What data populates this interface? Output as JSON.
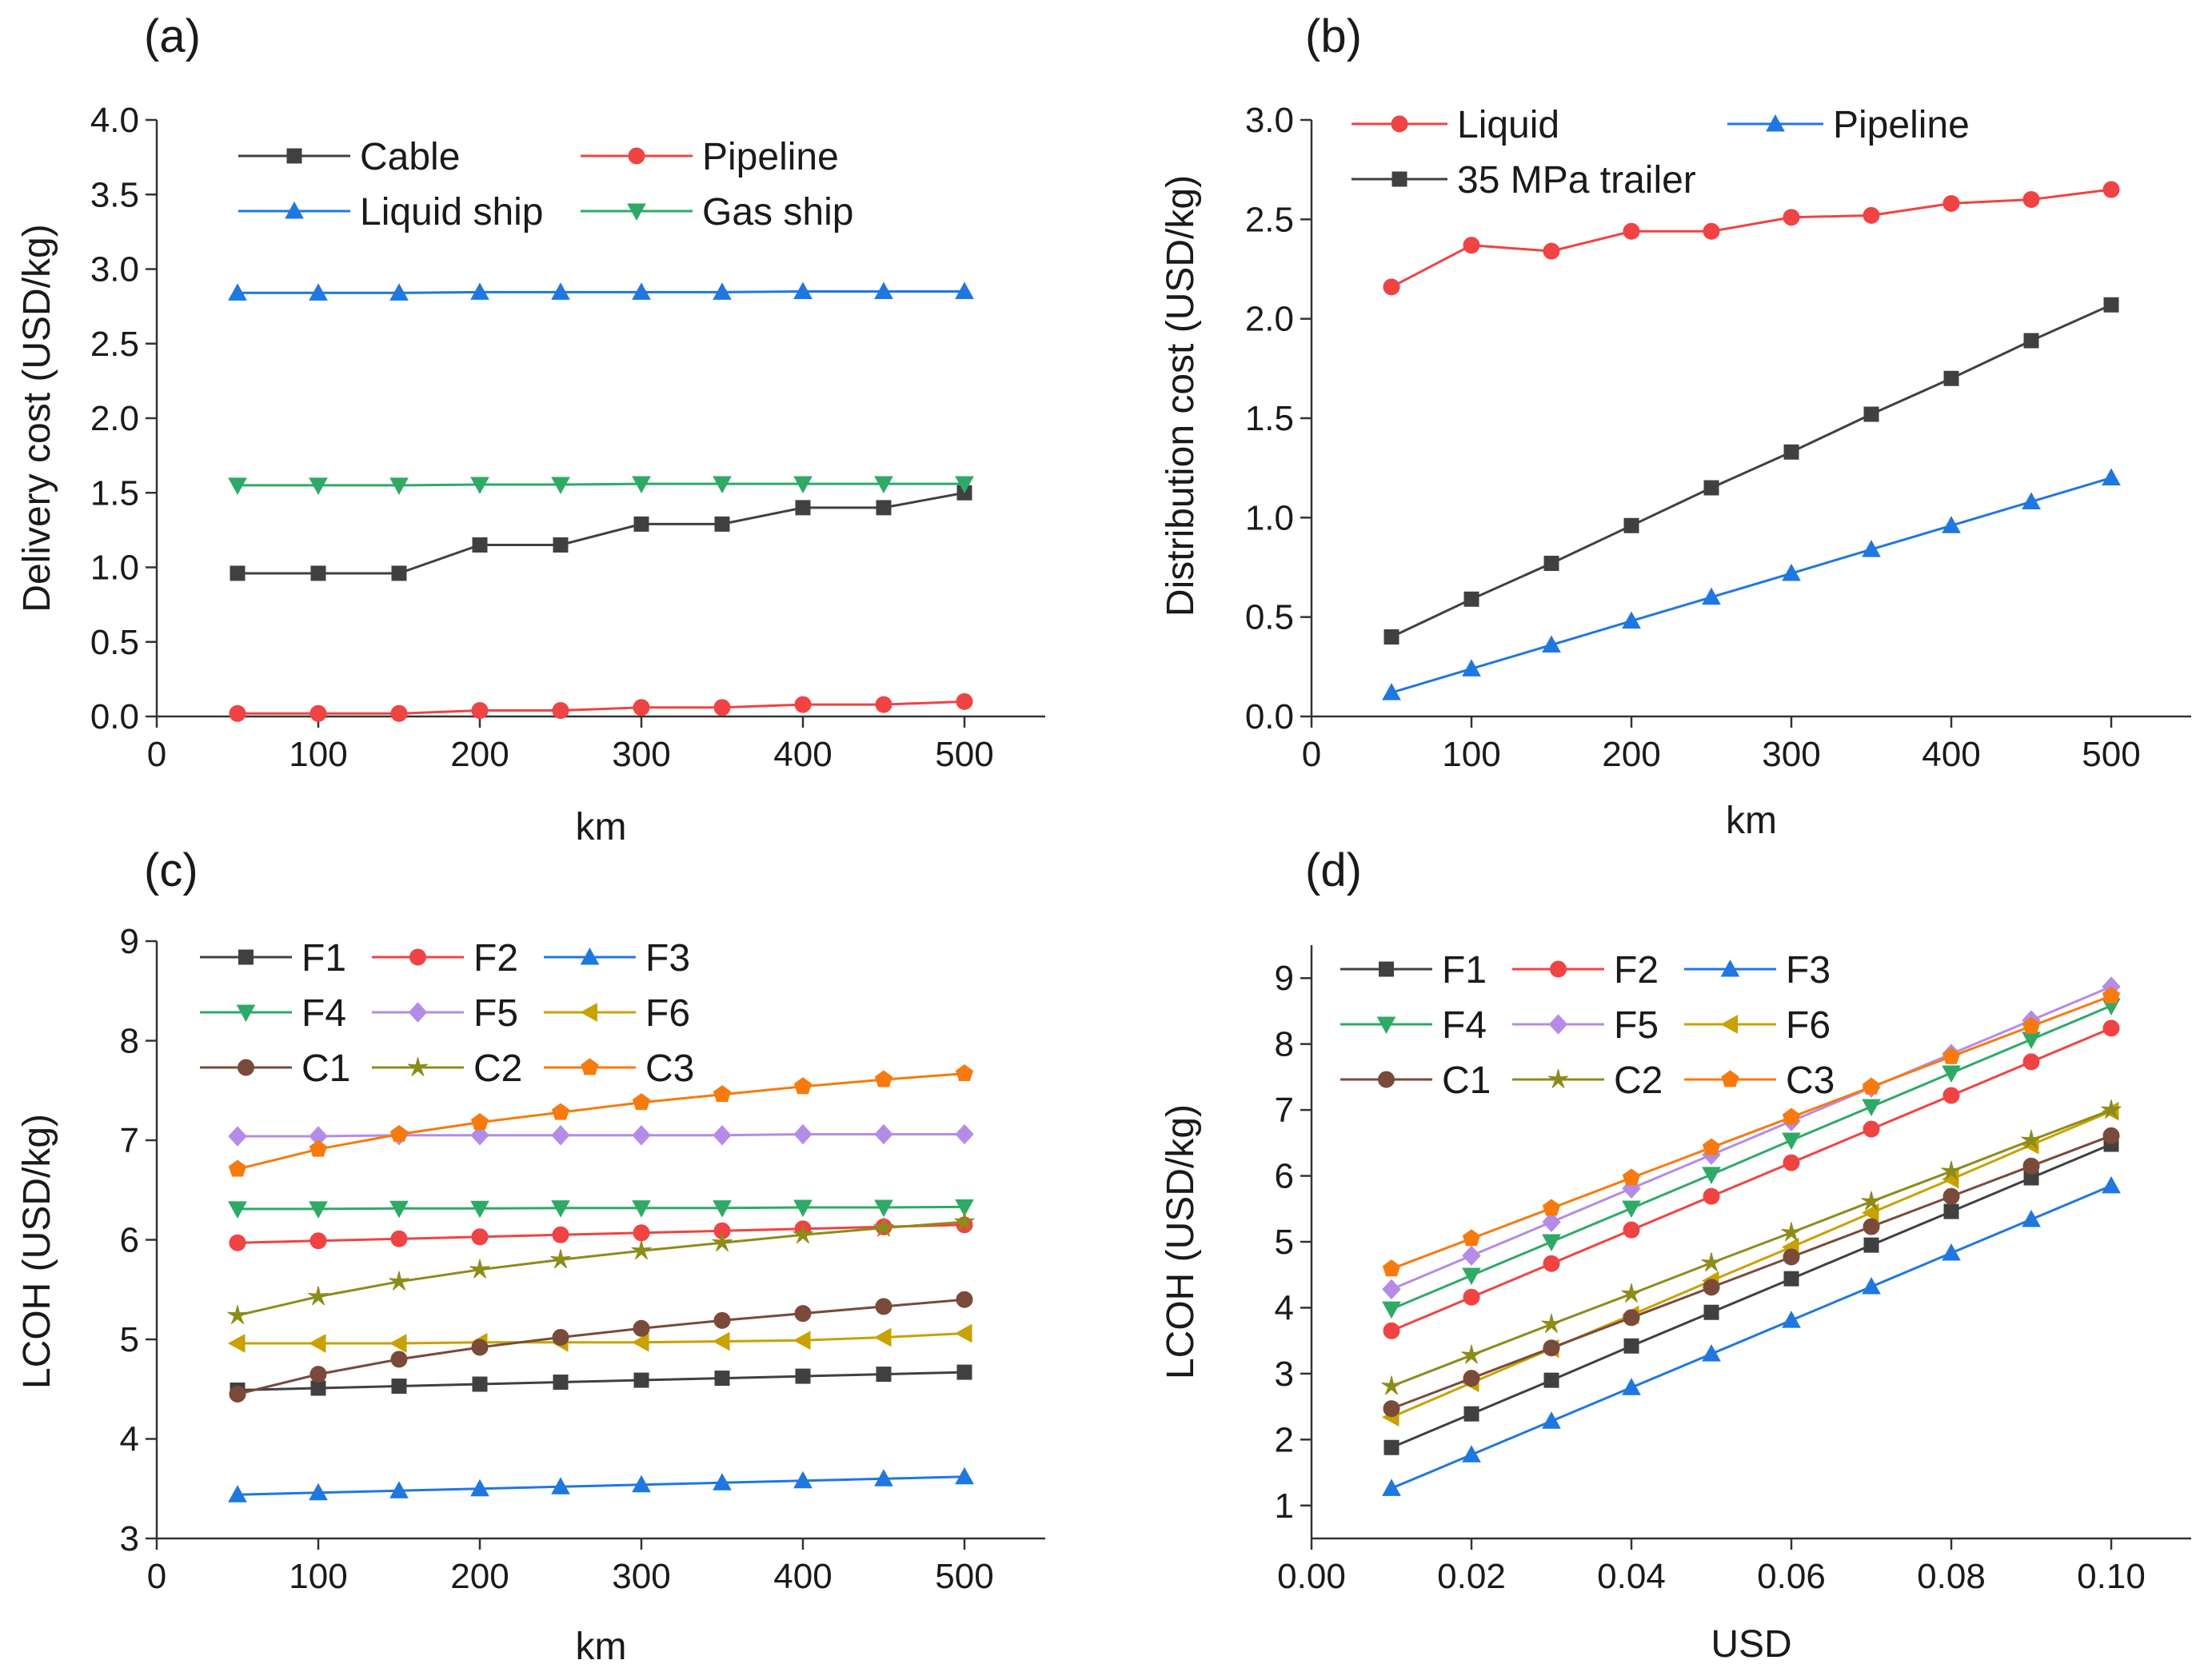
{
  "chart_data": [
    {
      "id": "a",
      "type": "line",
      "panel_label": "(a)",
      "xlabel": "km",
      "ylabel": "Delivery  cost (USD/kg)",
      "xlim": [
        0,
        550
      ],
      "ylim": [
        0,
        4.0
      ],
      "xticks": [
        0,
        100,
        200,
        300,
        400,
        500
      ],
      "xtick_labels": [
        "0",
        "100",
        "200",
        "300",
        "400",
        "500"
      ],
      "yticks": [
        0,
        0.5,
        1.0,
        1.5,
        2.0,
        2.5,
        3.0,
        3.5,
        4.0
      ],
      "ytick_labels": [
        "0.0",
        "0.5",
        "1.0",
        "1.5",
        "2.0",
        "2.5",
        "3.0",
        "3.5",
        "4.0"
      ],
      "legend_columns": 2,
      "x": [
        50,
        100,
        150,
        200,
        250,
        300,
        350,
        400,
        450,
        500
      ],
      "series": [
        {
          "name": "Cable",
          "color": "#404040",
          "marker": "square",
          "values": [
            0.96,
            0.96,
            0.96,
            1.15,
            1.15,
            1.29,
            1.29,
            1.4,
            1.4,
            1.5
          ]
        },
        {
          "name": "Pipeline",
          "color": "#f04343",
          "marker": "circle",
          "values": [
            0.02,
            0.02,
            0.02,
            0.04,
            0.04,
            0.06,
            0.06,
            0.08,
            0.08,
            0.1
          ]
        },
        {
          "name": "Liquid ship",
          "color": "#1f77e0",
          "marker": "triangle-up",
          "values": [
            2.84,
            2.84,
            2.84,
            2.845,
            2.845,
            2.845,
            2.845,
            2.85,
            2.85,
            2.85
          ]
        },
        {
          "name": "Gas ship",
          "color": "#2eaa66",
          "marker": "triangle-down",
          "values": [
            1.55,
            1.55,
            1.55,
            1.555,
            1.555,
            1.56,
            1.56,
            1.56,
            1.56,
            1.56
          ]
        }
      ]
    },
    {
      "id": "b",
      "type": "line",
      "panel_label": "(b)",
      "xlabel": "km",
      "ylabel": "Distribution cost (USD/kg)",
      "xlim": [
        0,
        550
      ],
      "ylim": [
        0,
        3.0
      ],
      "xticks": [
        0,
        100,
        200,
        300,
        400,
        500
      ],
      "xtick_labels": [
        "0",
        "100",
        "200",
        "300",
        "400",
        "500"
      ],
      "yticks": [
        0,
        0.5,
        1.0,
        1.5,
        2.0,
        2.5,
        3.0
      ],
      "ytick_labels": [
        "0.0",
        "0.5",
        "1.0",
        "1.5",
        "2.0",
        "2.5",
        "3.0"
      ],
      "legend_columns": 2,
      "x": [
        50,
        100,
        150,
        200,
        250,
        300,
        350,
        400,
        450,
        500
      ],
      "series": [
        {
          "name": "Liquid",
          "color": "#f04343",
          "marker": "circle",
          "values": [
            2.16,
            2.37,
            2.34,
            2.44,
            2.44,
            2.51,
            2.52,
            2.58,
            2.6,
            2.65
          ]
        },
        {
          "name": "Pipeline",
          "color": "#1f77e0",
          "marker": "triangle-up",
          "values": [
            0.12,
            0.24,
            0.36,
            0.48,
            0.6,
            0.72,
            0.84,
            0.96,
            1.08,
            1.2
          ]
        },
        {
          "name": "35 MPa trailer",
          "color": "#404040",
          "marker": "square",
          "values": [
            0.4,
            0.59,
            0.77,
            0.96,
            1.15,
            1.33,
            1.52,
            1.7,
            1.89,
            2.07
          ]
        }
      ]
    },
    {
      "id": "c",
      "type": "line",
      "panel_label": "(c)",
      "xlabel": "km",
      "ylabel": "LCOH (USD/kg)",
      "xlim": [
        0,
        550
      ],
      "ylim": [
        3,
        9
      ],
      "xticks": [
        0,
        100,
        200,
        300,
        400,
        500
      ],
      "xtick_labels": [
        "0",
        "100",
        "200",
        "300",
        "400",
        "500"
      ],
      "yticks": [
        3,
        4,
        5,
        6,
        7,
        8,
        9
      ],
      "ytick_labels": [
        "3",
        "4",
        "5",
        "6",
        "7",
        "8",
        "9"
      ],
      "legend_columns": 3,
      "x": [
        50,
        100,
        150,
        200,
        250,
        300,
        350,
        400,
        450,
        500
      ],
      "series": [
        {
          "name": "F1",
          "color": "#404040",
          "marker": "square",
          "values": [
            4.49,
            4.51,
            4.53,
            4.55,
            4.57,
            4.59,
            4.61,
            4.63,
            4.65,
            4.67
          ]
        },
        {
          "name": "F2",
          "color": "#f04343",
          "marker": "circle",
          "values": [
            5.97,
            5.99,
            6.01,
            6.03,
            6.05,
            6.07,
            6.09,
            6.11,
            6.13,
            6.15
          ]
        },
        {
          "name": "F3",
          "color": "#1f77e0",
          "marker": "triangle-up",
          "values": [
            3.44,
            3.46,
            3.48,
            3.5,
            3.52,
            3.54,
            3.56,
            3.58,
            3.6,
            3.62
          ]
        },
        {
          "name": "F4",
          "color": "#2eaa66",
          "marker": "triangle-down",
          "values": [
            6.31,
            6.31,
            6.315,
            6.315,
            6.32,
            6.32,
            6.32,
            6.325,
            6.325,
            6.33
          ]
        },
        {
          "name": "F5",
          "color": "#b58be8",
          "marker": "diamond",
          "values": [
            7.04,
            7.04,
            7.05,
            7.05,
            7.05,
            7.05,
            7.05,
            7.06,
            7.06,
            7.06
          ]
        },
        {
          "name": "F6",
          "color": "#c9a100",
          "marker": "triangle-left",
          "values": [
            4.96,
            4.96,
            4.96,
            4.97,
            4.97,
            4.97,
            4.98,
            4.99,
            5.02,
            5.06
          ]
        },
        {
          "name": "C1",
          "color": "#7a4a3a",
          "marker": "circle",
          "values": [
            4.45,
            4.65,
            4.8,
            4.92,
            5.02,
            5.11,
            5.19,
            5.26,
            5.33,
            5.4
          ]
        },
        {
          "name": "C2",
          "color": "#8c8c1a",
          "marker": "star",
          "values": [
            5.24,
            5.43,
            5.58,
            5.7,
            5.8,
            5.89,
            5.97,
            6.05,
            6.12,
            6.18
          ]
        },
        {
          "name": "C3",
          "color": "#f77a0e",
          "marker": "pentagon",
          "values": [
            6.71,
            6.91,
            7.06,
            7.18,
            7.28,
            7.38,
            7.46,
            7.54,
            7.61,
            7.67
          ]
        }
      ]
    },
    {
      "id": "d",
      "type": "line",
      "panel_label": "(d)",
      "xlabel": "USD",
      "ylabel": "LCOH (USD/kg)",
      "xlim": [
        0,
        0.11
      ],
      "ylim": [
        0.5,
        9.5
      ],
      "xticks": [
        0,
        0.02,
        0.04,
        0.06,
        0.08,
        0.1
      ],
      "xtick_labels": [
        "0.00",
        "0.02",
        "0.04",
        "0.06",
        "0.08",
        "0.10"
      ],
      "yticks": [
        1,
        2,
        3,
        4,
        5,
        6,
        7,
        8,
        9
      ],
      "ytick_labels": [
        "1",
        "2",
        "3",
        "4",
        "5",
        "6",
        "7",
        "8",
        "9"
      ],
      "legend_columns": 3,
      "x": [
        0.01,
        0.02,
        0.03,
        0.04,
        0.05,
        0.06,
        0.07,
        0.08,
        0.09,
        0.1
      ],
      "series": [
        {
          "name": "F1",
          "color": "#404040",
          "marker": "square",
          "values": [
            1.88,
            2.39,
            2.9,
            3.42,
            3.93,
            4.44,
            4.95,
            5.46,
            5.97,
            6.48
          ]
        },
        {
          "name": "F2",
          "color": "#f04343",
          "marker": "circle",
          "values": [
            3.65,
            4.16,
            4.67,
            5.18,
            5.69,
            6.2,
            6.71,
            7.22,
            7.73,
            8.24
          ]
        },
        {
          "name": "F3",
          "color": "#1f77e0",
          "marker": "triangle-up",
          "values": [
            1.26,
            1.77,
            2.28,
            2.79,
            3.3,
            3.81,
            4.32,
            4.83,
            5.34,
            5.85
          ]
        },
        {
          "name": "F4",
          "color": "#2eaa66",
          "marker": "triangle-down",
          "values": [
            3.98,
            4.49,
            5.0,
            5.51,
            6.02,
            6.54,
            7.05,
            7.56,
            8.07,
            8.58
          ]
        },
        {
          "name": "F5",
          "color": "#b58be8",
          "marker": "diamond",
          "values": [
            4.28,
            4.79,
            5.3,
            5.81,
            6.32,
            6.83,
            7.34,
            7.85,
            8.36,
            8.87
          ]
        },
        {
          "name": "F6",
          "color": "#c9a100",
          "marker": "triangle-left",
          "values": [
            2.34,
            2.86,
            3.38,
            3.89,
            4.41,
            4.92,
            5.44,
            5.95,
            6.47,
            6.98
          ]
        },
        {
          "name": "C1",
          "color": "#7a4a3a",
          "marker": "circle",
          "values": [
            2.47,
            2.93,
            3.39,
            3.85,
            4.31,
            4.77,
            5.23,
            5.69,
            6.15,
            6.61
          ]
        },
        {
          "name": "C2",
          "color": "#8c8c1a",
          "marker": "star",
          "values": [
            2.81,
            3.28,
            3.75,
            4.21,
            4.68,
            5.14,
            5.61,
            6.07,
            6.54,
            7.0
          ]
        },
        {
          "name": "C3",
          "color": "#f77a0e",
          "marker": "pentagon",
          "values": [
            4.59,
            5.05,
            5.51,
            5.97,
            6.43,
            6.89,
            7.35,
            7.81,
            8.27,
            8.73
          ]
        }
      ]
    }
  ]
}
